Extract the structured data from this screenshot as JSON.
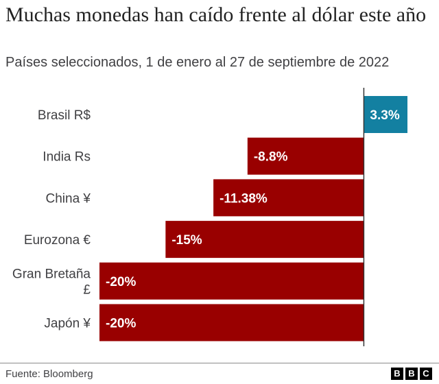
{
  "header": {
    "title": "Muchas monedas han caído frente al dólar este año",
    "subtitle": "Países seleccionados, 1 de enero al 27 de septiembre de 2022"
  },
  "chart_data": {
    "type": "bar",
    "orientation": "horizontal",
    "categories": [
      "Brasil R$",
      "India Rs",
      "China ¥",
      "Eurozona €",
      "Gran Bretaña £",
      "Japón ¥"
    ],
    "values": [
      3.3,
      -8.8,
      -11.38,
      -15,
      -20,
      -20
    ],
    "value_labels": [
      "3.3%",
      "-8.8%",
      "-11.38%",
      "-15%",
      "-20%",
      "-20%"
    ],
    "xlim": [
      -20,
      3.3
    ],
    "colors": {
      "positive": "#1380a1",
      "negative": "#990000",
      "axis": "#333333"
    },
    "grid": false,
    "legend": "none"
  },
  "footer": {
    "source": "Fuente: Bloomberg",
    "logo": [
      "B",
      "B",
      "C"
    ]
  }
}
